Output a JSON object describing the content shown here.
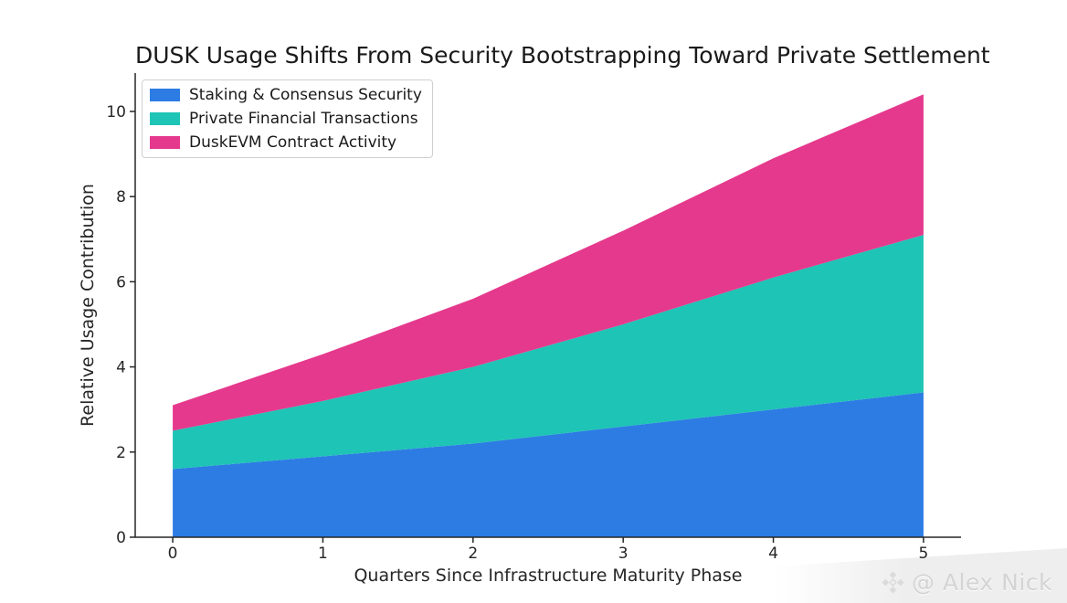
{
  "chart_data": {
    "type": "area",
    "stacked": true,
    "title": "DUSK Usage Shifts From Security Bootstrapping Toward Private Settlement",
    "xlabel": "Quarters Since Infrastructure Maturity Phase",
    "ylabel": "Relative Usage Contribution",
    "x": [
      0,
      1,
      2,
      3,
      4,
      5
    ],
    "series": [
      {
        "name": "Staking & Consensus Security",
        "color": "#2d7ce4",
        "values": [
          1.6,
          1.9,
          2.2,
          2.6,
          3.0,
          3.4
        ]
      },
      {
        "name": "Private Financial Transactions",
        "color": "#1ec4b5",
        "values": [
          0.9,
          1.3,
          1.8,
          2.4,
          3.1,
          3.7
        ]
      },
      {
        "name": "DuskEVM Contract Activity",
        "color": "#e5398d",
        "values": [
          0.6,
          1.1,
          1.6,
          2.2,
          2.8,
          3.3
        ]
      }
    ],
    "x_ticks": [
      "0",
      "1",
      "2",
      "3",
      "4",
      "5"
    ],
    "y_ticks": [
      "0",
      "2",
      "4",
      "6",
      "8",
      "10"
    ],
    "xlim": [
      -0.25,
      5.25
    ],
    "ylim": [
      0,
      10.9
    ],
    "grid": false,
    "legend_position": "upper left",
    "axis_color": "#262626",
    "text_color": "#1a1a1a"
  },
  "watermark": {
    "icon": "diamond-cluster-icon",
    "text": "@ Alex Nick"
  }
}
